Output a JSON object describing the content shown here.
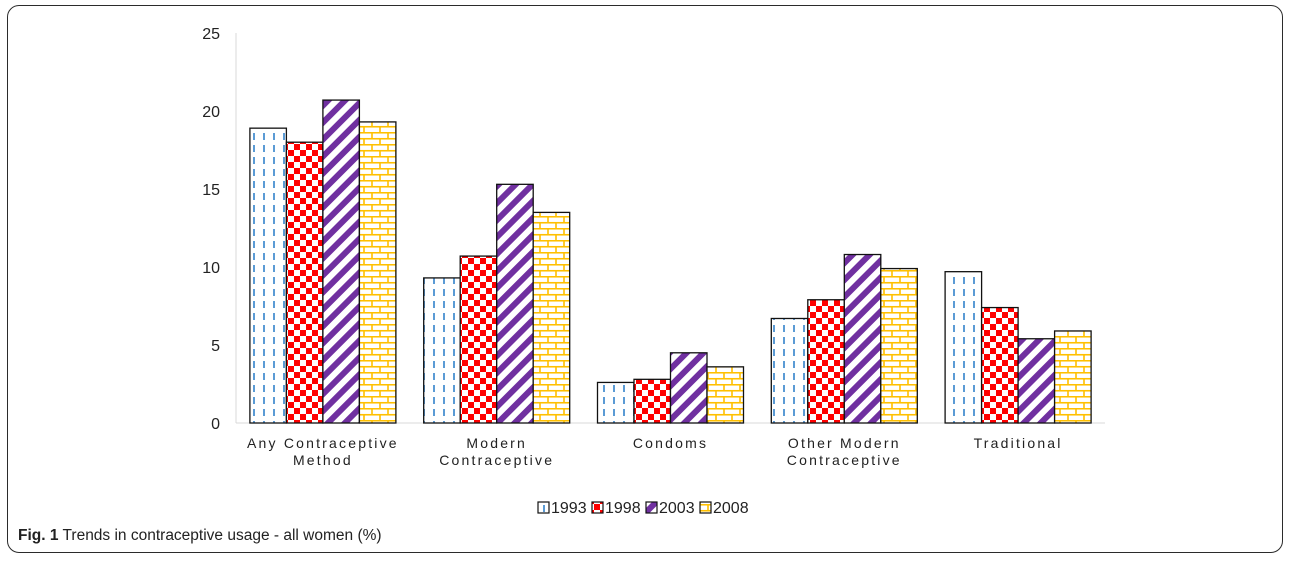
{
  "caption": {
    "label": "Fig. 1",
    "text": "Trends in contraceptive usage - all women (%)"
  },
  "chart_data": {
    "type": "bar",
    "title": "",
    "xlabel": "",
    "ylabel": "",
    "ylim": [
      0,
      25
    ],
    "yticks": [
      "0",
      "5",
      "10",
      "15",
      "20",
      "25"
    ],
    "grid": false,
    "legend_position": "bottom",
    "categories": [
      [
        "Any Contraceptive",
        "Method"
      ],
      [
        "Modern",
        "Contraceptive"
      ],
      [
        "Condoms"
      ],
      [
        "Other Modern",
        "Contraceptive"
      ],
      [
        "Traditional"
      ]
    ],
    "series": [
      {
        "name": "1993",
        "pattern": "dashed-vertical",
        "color": "#5b9bd5",
        "values": [
          18.9,
          9.3,
          2.6,
          6.7,
          9.7
        ]
      },
      {
        "name": "1998",
        "pattern": "checkerboard",
        "color": "#ff0000",
        "values": [
          18.0,
          10.7,
          2.8,
          7.9,
          7.4
        ]
      },
      {
        "name": "2003",
        "pattern": "diagonal-stripes",
        "color": "#7030a0",
        "values": [
          20.7,
          15.3,
          4.5,
          10.8,
          5.4
        ]
      },
      {
        "name": "2008",
        "pattern": "brick",
        "color": "#ffc000",
        "values": [
          19.3,
          13.5,
          3.6,
          9.9,
          5.9
        ]
      }
    ]
  }
}
